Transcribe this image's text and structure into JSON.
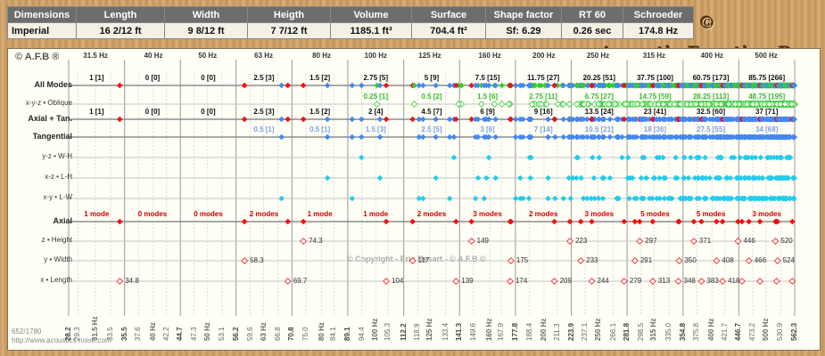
{
  "header": {
    "columns": [
      "Dimensions",
      "Length",
      "Width",
      "Heigth",
      "Volume",
      "Surface",
      "Shape factor",
      "RT 60",
      "Schroeder"
    ],
    "values": [
      "Imperial",
      "16 2/12 ft",
      "9 8/12 ft",
      "7 7/12 ft",
      "1185.1 ft³",
      "704.4 ft²",
      "Sf: 6.29",
      "0.26 sec",
      "174.8 Hz"
    ]
  },
  "brand": "© Acoustic.Function.Box ©",
  "copyright": "© A.F.B ®",
  "watermark": "© Copyright - Eric Desart - © A.F.B ©",
  "footer_left": "652/1780",
  "footer_url": "http://www.acoustics-noise.com",
  "colors": {
    "axial": "#ee1111",
    "tangential": "#4488ee",
    "oblique": "#33cc33",
    "band_tan": "#22ccee"
  },
  "row_labels": [
    "All Modes",
    "x-y-z • Oblique",
    "Axial + Tan.",
    "Tangential",
    "y-z • W-H",
    "x-z • L-H",
    "x-y • L-W",
    "Axial",
    "z • Height",
    "y • Width",
    "x • Length"
  ],
  "center_freqs": [
    "31.5 Hz",
    "40 Hz",
    "50 Hz",
    "63 Hz",
    "80 Hz",
    "100 Hz",
    "125 Hz",
    "160 Hz",
    "200 Hz",
    "250 Hz",
    "315 Hz",
    "400 Hz",
    "500 Hz"
  ],
  "band_edges": [
    "28.2",
    "35.5",
    "44.7",
    "56.2",
    "70.8",
    "89.1",
    "112.2",
    "141.3",
    "177.8",
    "223.9",
    "281.8",
    "354.8",
    "446.7",
    "562.3"
  ],
  "sub_ticks": [
    "29.3",
    "31.5 Hz",
    "33.5",
    "37.6",
    "40 Hz",
    "42.2",
    "47.3",
    "50 Hz",
    "53.1",
    "59.6",
    "63 Hz",
    "66.8",
    "75.0",
    "80 Hz",
    "84.1",
    "94.4",
    "100 Hz",
    "105.3",
    "118.9",
    "125 Hz",
    "133.4",
    "149.6",
    "160 Hz",
    "167.9",
    "188.4",
    "200 Hz",
    "211.3",
    "237.1",
    "250 Hz",
    "266.1",
    "298.5",
    "315 Hz",
    "335.0",
    "375.8",
    "400 Hz",
    "421.7",
    "473.2",
    "500 Hz",
    "530.9"
  ],
  "counts": {
    "all": [
      "1 [1]",
      "0 [0]",
      "0 [0]",
      "2.5 [3]",
      "1.5 [2]",
      "2.75 [5]",
      "5 [9]",
      "7.5 [15]",
      "11.75 [27]",
      "20.25 [51]",
      "37.75 [100]",
      "60.75 [173]",
      "85.75 [266]"
    ],
    "oblique": [
      "",
      "",
      "",
      "",
      "",
      "0.25 [1]",
      "0.5 [2]",
      "1.5 [6]",
      "2.75 [11]",
      "6.75 [27]",
      "14.75 [59]",
      "28.25 [113]",
      "48.75 [195]"
    ],
    "axtan": [
      "1 [1]",
      "0 [0]",
      "0 [0]",
      "2.5 [3]",
      "1.5 [2]",
      "2 [4]",
      "4.5 [7]",
      "6 [9]",
      "9 [16]",
      "13.5 [24]",
      "23 [41]",
      "32.5 [60]",
      "37 [71]"
    ],
    "tangential": [
      "",
      "",
      "",
      "0.5 [1]",
      "0.5 [1]",
      "1.5 [3]",
      "2.5 [5]",
      "3 [6]",
      "7 [14]",
      "10.5 [21]",
      "18 [36]",
      "27.5 [55]",
      "34 [68]"
    ],
    "axial": [
      "1 mode",
      "0 modes",
      "0 modes",
      "2 modes",
      "1 mode",
      "1 mode",
      "2 modes",
      "3 modes",
      "2 modes",
      "3 modes",
      "5 modes",
      "5 modes",
      "3 modes"
    ]
  },
  "axial_labels": {
    "height": [
      "74.3",
      "149",
      "223",
      "297",
      "371",
      "446",
      "520"
    ],
    "width": [
      "58.3",
      "117",
      "175",
      "233",
      "291",
      "350",
      "408",
      "466",
      "524"
    ],
    "length": [
      "34.8",
      "69.7",
      "104",
      "139",
      "174",
      "209",
      "244",
      "279",
      "313",
      "348",
      "383",
      "418"
    ]
  }
}
